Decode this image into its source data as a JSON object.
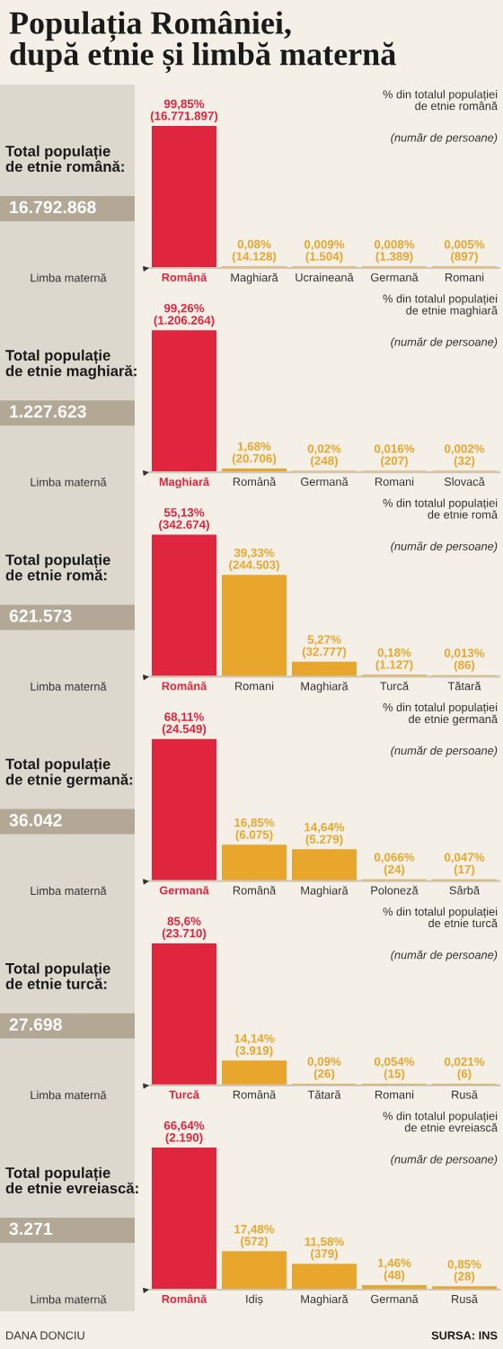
{
  "chart_data": [
    {
      "type": "bar",
      "title": "Populația României,\ndupă etnie și limbă maternă",
      "xlabel": "Limba maternă",
      "categories": [
        "Română",
        "Maghiară",
        "Ucraineană",
        "Germană",
        "Romani"
      ],
      "values": [
        99.85,
        0.08,
        0.009,
        0.008,
        0.005
      ],
      "colors": [
        "#e0253f",
        "#e8a62c",
        "#e8a62c",
        "#e8a62c",
        "#e8a62c"
      ],
      "value_labels": [
        "99,85%\n(16.771.897)",
        "0,08%\n(14.128)",
        "0,009%\n(1.504)",
        "0,008%\n(1.389)",
        "0,005%\n(897)"
      ],
      "annotations": [
        "Total populație\nde etnie română:",
        "16.792.868",
        "% din totalul populației\nde etnie română",
        "(număr de persoane)"
      ]
    },
    {
      "type": "bar",
      "xlabel": "Limba maternă",
      "categories": [
        "Maghiară",
        "Română",
        "Germană",
        "Romani",
        "Slovacă"
      ],
      "values": [
        99.26,
        1.68,
        0.02,
        0.016,
        0.002
      ],
      "colors": [
        "#e0253f",
        "#e8a62c",
        "#e8a62c",
        "#e8a62c",
        "#e8a62c"
      ],
      "value_labels": [
        "99,26%\n(1.206.264)",
        "1,68%\n(20.706)",
        "0,02%\n(248)",
        "0,016%\n(207)",
        "0,002%\n(32)"
      ],
      "annotations": [
        "Total populație\nde etnie maghiară:",
        "1.227.623",
        "% din totalul populației\nde etnie maghiară",
        "(număr de persoane)"
      ]
    },
    {
      "type": "bar",
      "xlabel": "Limba maternă",
      "categories": [
        "Română",
        "Romani",
        "Maghiară",
        "Turcă",
        "Tătară"
      ],
      "values": [
        55.13,
        39.33,
        5.27,
        0.18,
        0.013
      ],
      "colors": [
        "#e0253f",
        "#e8a62c",
        "#e8a62c",
        "#e8a62c",
        "#e8a62c"
      ],
      "value_labels": [
        "55,13%\n(342.674)",
        "39,33%\n(244.503)",
        "5,27%\n(32.777)",
        "0,18%\n(1.127)",
        "0,013%\n(86)"
      ],
      "annotations": [
        "Total populație\nde etnie romă:",
        "621.573",
        "% din totalul populației\nde etnie romă",
        "(număr de persoane)"
      ]
    },
    {
      "type": "bar",
      "xlabel": "Limba maternă",
      "categories": [
        "Germană",
        "Română",
        "Maghiară",
        "Poloneză",
        "Sârbă"
      ],
      "values": [
        68.11,
        16.85,
        14.64,
        0.066,
        0.047
      ],
      "colors": [
        "#e0253f",
        "#e8a62c",
        "#e8a62c",
        "#e8a62c",
        "#e8a62c"
      ],
      "value_labels": [
        "68,11%\n(24.549)",
        "16,85%\n(6.075)",
        "14,64%\n(5.279)",
        "0,066%\n(24)",
        "0,047%\n(17)"
      ],
      "annotations": [
        "Total populație\nde etnie germană:",
        "36.042",
        "% din totalul populației\nde etnie germană",
        "(număr de persoane)"
      ]
    },
    {
      "type": "bar",
      "xlabel": "Limba maternă",
      "categories": [
        "Turcă",
        "Română",
        "Tătară",
        "Romani",
        "Rusă"
      ],
      "values": [
        85.6,
        14.14,
        0.09,
        0.054,
        0.021
      ],
      "colors": [
        "#e0253f",
        "#e8a62c",
        "#e8a62c",
        "#e8a62c",
        "#e8a62c"
      ],
      "value_labels": [
        "85,6%\n(23.710)",
        "14,14%\n(3.919)",
        "0,09%\n(26)",
        "0,054%\n(15)",
        "0,021%\n(6)"
      ],
      "annotations": [
        "Total populație\nde etnie turcă:",
        "27.698",
        "% din totalul populației\nde etnie turcă",
        "(număr de persoane)"
      ]
    },
    {
      "type": "bar",
      "xlabel": "Limba maternă",
      "categories": [
        "Română",
        "Idiș",
        "Maghiară",
        "Germană",
        "Rusă"
      ],
      "values": [
        66.64,
        17.48,
        11.58,
        1.46,
        0.85
      ],
      "colors": [
        "#e0253f",
        "#e8a62c",
        "#e8a62c",
        "#e8a62c",
        "#e8a62c"
      ],
      "value_labels": [
        "66,64%\n(2.190)",
        "17,48%\n(572)",
        "11,58%\n(379)",
        "1,46%\n(48)",
        "0,85%\n(28)"
      ],
      "annotations": [
        "Total populație\nde etnie evreiască:",
        "3.271",
        "% din totalul populației\nde etnie evreiască",
        "(număr de persoane)",
        "DANA DONCIU",
        "SURSA: INS"
      ]
    }
  ]
}
